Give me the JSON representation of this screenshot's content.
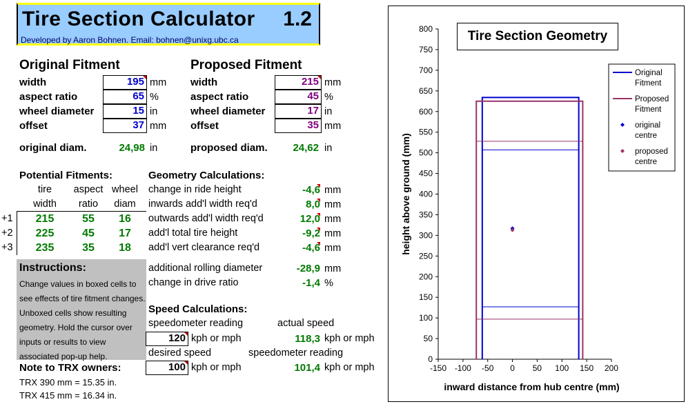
{
  "header": {
    "title": "Tire Section Calculator",
    "version": "1.2",
    "credit": "Developed by Aaron Bohnen. Email: bohnen@unixg.ubc.ca"
  },
  "original": {
    "heading": "Original Fitment",
    "width_label": "width",
    "width": "195",
    "width_unit": "mm",
    "aspect_label": "aspect ratio",
    "aspect": "65",
    "aspect_unit": "%",
    "wheel_label": "wheel diameter",
    "wheel": "15",
    "wheel_unit": "in",
    "offset_label": "offset",
    "offset": "37",
    "offset_unit": "mm",
    "diam_label": "original diam.",
    "diam": "24,98",
    "diam_unit": "in"
  },
  "proposed": {
    "heading": "Proposed Fitment",
    "width_label": "width",
    "width": "215",
    "width_unit": "mm",
    "aspect_label": "aspect ratio",
    "aspect": "45",
    "aspect_unit": "%",
    "wheel_label": "wheel diameter",
    "wheel": "17",
    "wheel_unit": "in",
    "offset_label": "offset",
    "offset": "35",
    "offset_unit": "mm",
    "diam_label": "proposed diam.",
    "diam": "24,62",
    "diam_unit": "in"
  },
  "potential": {
    "heading": "Potential Fitments:",
    "col1a": "tire",
    "col1b": "width",
    "col2a": "aspect",
    "col2b": "ratio",
    "col3a": "wheel",
    "col3b": "diam",
    "rows": [
      {
        "tag": "+1",
        "width": "215",
        "aspect": "55",
        "diam": "16"
      },
      {
        "tag": "+2",
        "width": "225",
        "aspect": "45",
        "diam": "17"
      },
      {
        "tag": "+3",
        "width": "235",
        "aspect": "35",
        "diam": "18"
      }
    ]
  },
  "geometry": {
    "heading": "Geometry Calculations:",
    "rows": [
      {
        "label": "change in ride height",
        "value": "-4,6",
        "unit": "mm"
      },
      {
        "label": "inwards add'l width req'd",
        "value": "8,0",
        "unit": "mm"
      },
      {
        "label": "outwards add'l width req'd",
        "value": "12,0",
        "unit": "mm"
      },
      {
        "label": "add'l total tire height",
        "value": "-9,2",
        "unit": "mm"
      },
      {
        "label": "add'l vert clearance req'd",
        "value": "-4,6",
        "unit": "mm"
      }
    ],
    "rolling_label": "additional rolling diameter",
    "rolling": "-28,9",
    "rolling_unit": "mm",
    "drive_label": "change in drive ratio",
    "drive": "-1,4",
    "drive_unit": "%"
  },
  "instructions": {
    "heading": "Instructions:",
    "text": "Change values in boxed cells to see effects of tire fitment changes. Unboxed cells show resulting geometry. Hold the cursor over inputs or results to view associated pop-up help."
  },
  "speed": {
    "heading": "Speed Calculations:",
    "speedo_label": "speedometer reading",
    "actual_label": "actual speed",
    "speedo_input": "120",
    "speedo_unit": "kph or mph",
    "actual_value": "118,3",
    "actual_unit": "kph or mph",
    "desired_label": "desired speed",
    "speedo2_label": "speedometer reading",
    "desired_input": "100",
    "desired_unit": "kph or mph",
    "speedo2_value": "101,4",
    "speedo2_unit": "kph or mph"
  },
  "trx": {
    "heading": "Note to TRX owners:",
    "line1": "TRX 390 mm = 15.35 in.",
    "line2": "TRX 415 mm = 16.34 in."
  },
  "colors": {
    "original": "#0000cc",
    "proposed": "#993366",
    "results": "#007a00",
    "header_bg": "#99ccff"
  },
  "chart_data": {
    "type": "line",
    "title": "Tire Section Geometry",
    "xlabel": "inward distance from hub centre (mm)",
    "ylabel": "height above ground (mm)",
    "xlim": [
      -150,
      200
    ],
    "ylim": [
      0,
      800
    ],
    "xticks": [
      -150,
      -100,
      -50,
      0,
      50,
      100,
      150,
      200
    ],
    "yticks": [
      0,
      50,
      100,
      150,
      200,
      250,
      300,
      350,
      400,
      450,
      500,
      550,
      600,
      650,
      700,
      750,
      800
    ],
    "legend_position": "right",
    "series": [
      {
        "name": "Original Fitment",
        "color": "#0000cc",
        "outline": [
          [
            -61,
            0
          ],
          [
            -61,
            634
          ],
          [
            134,
            634
          ],
          [
            134,
            0
          ]
        ],
        "rim_lines": [
          [
            [
              -61,
              127
            ],
            [
              134,
              127
            ]
          ],
          [
            [
              -61,
              507
            ],
            [
              134,
              507
            ]
          ]
        ]
      },
      {
        "name": "Proposed Fitment",
        "color": "#993366",
        "outline": [
          [
            -73,
            0
          ],
          [
            -73,
            625
          ],
          [
            142,
            625
          ],
          [
            142,
            0
          ]
        ],
        "rim_lines": [
          [
            [
              -73,
              97
            ],
            [
              142,
              97
            ]
          ],
          [
            [
              -73,
              528
            ],
            [
              142,
              528
            ]
          ]
        ]
      },
      {
        "name": "original centre",
        "color": "#0000cc",
        "marker": "diamond",
        "point": [
          0,
          317
        ]
      },
      {
        "name": "proposed centre",
        "color": "#993366",
        "marker": "diamond",
        "point": [
          0,
          313
        ]
      }
    ]
  }
}
